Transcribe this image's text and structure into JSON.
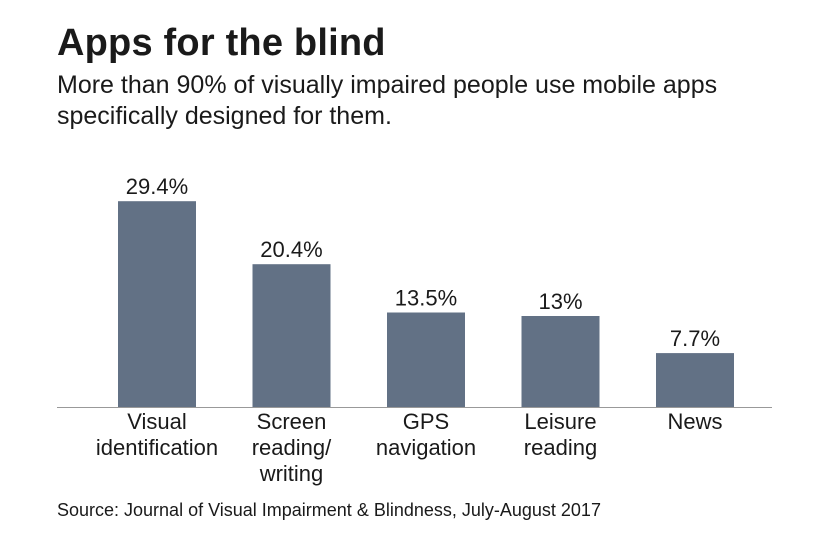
{
  "chart_data": {
    "type": "bar",
    "title": "Apps for the blind",
    "subtitle": "More than 90% of visually impaired people use mobile apps specifically designed for them.",
    "categories": [
      [
        "Visual",
        "identification"
      ],
      [
        "Screen",
        "reading/",
        "writing"
      ],
      [
        "GPS",
        "navigation"
      ],
      [
        "Leisure",
        "reading"
      ],
      [
        "News"
      ]
    ],
    "values": [
      29.4,
      20.4,
      13.5,
      13,
      7.7
    ],
    "value_labels": [
      "29.4%",
      "20.4%",
      "13.5%",
      "13%",
      "7.7%"
    ],
    "xlabel": "",
    "ylabel": "",
    "ylim": [
      0,
      30
    ],
    "bar_color": "#627185",
    "axis_color": "#999999",
    "source": "Source: Journal of Visual Impairment & Blindness, July-August 2017"
  }
}
